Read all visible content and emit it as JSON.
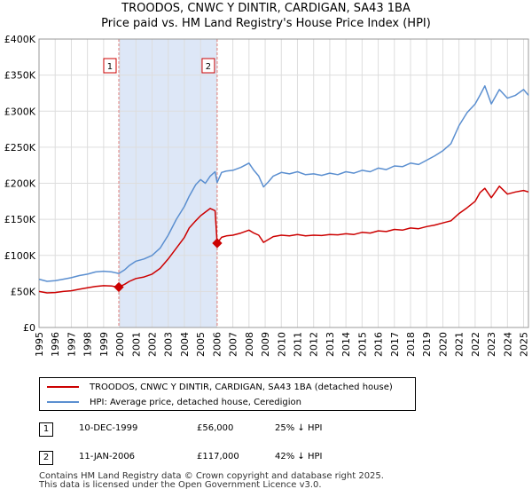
{
  "title_line1": "TROODOS, CNWC Y DINTIR, CARDIGAN, SA43 1BA",
  "title_line2": "Price paid vs. HM Land Registry's House Price Index (HPI)",
  "chart_data": {
    "type": "line",
    "xlim": [
      1995,
      2025.3
    ],
    "ylim": [
      0,
      400000
    ],
    "yticks": [
      0,
      50000,
      100000,
      150000,
      200000,
      250000,
      300000,
      350000,
      400000
    ],
    "ytick_labels": [
      "£0",
      "£50K",
      "£100K",
      "£150K",
      "£200K",
      "£250K",
      "£300K",
      "£350K",
      "£400K"
    ],
    "xticks": [
      1995,
      1996,
      1997,
      1998,
      1999,
      2000,
      2001,
      2002,
      2003,
      2004,
      2005,
      2006,
      2007,
      2008,
      2009,
      2010,
      2011,
      2012,
      2013,
      2014,
      2015,
      2016,
      2017,
      2018,
      2019,
      2020,
      2021,
      2022,
      2023,
      2024,
      2025
    ],
    "grid": true,
    "shaded_span": [
      1999.94,
      2006.03
    ],
    "series": [
      {
        "name": "TROODOS, CNWC Y DINTIR, CARDIGAN, SA43 1BA (detached house)",
        "color": "#cc0000",
        "x": [
          1995,
          1995.5,
          1996,
          1996.5,
          1997,
          1997.5,
          1998,
          1998.5,
          1999,
          1999.5,
          1999.94,
          2000.3,
          2000.6,
          2001,
          2001.5,
          2002,
          2002.5,
          2003,
          2003.5,
          2004,
          2004.3,
          2004.7,
          2005,
          2005.3,
          2005.6,
          2005.9,
          2006.03,
          2006.3,
          2006.6,
          2007,
          2007.5,
          2008,
          2008.3,
          2008.6,
          2008.9,
          2009.2,
          2009.5,
          2010,
          2010.5,
          2011,
          2011.5,
          2012,
          2012.5,
          2013,
          2013.5,
          2014,
          2014.5,
          2015,
          2015.5,
          2016,
          2016.5,
          2017,
          2017.5,
          2018,
          2018.5,
          2019,
          2019.5,
          2020,
          2020.5,
          2021,
          2021.5,
          2022,
          2022.3,
          2022.6,
          2023,
          2023.5,
          2024,
          2024.5,
          2025,
          2025.3
        ],
        "values": [
          50000,
          48000,
          48500,
          50000,
          51000,
          53000,
          55000,
          57000,
          58000,
          57500,
          56000,
          60000,
          64000,
          68000,
          70000,
          74000,
          82000,
          95000,
          110000,
          125000,
          138000,
          148000,
          155000,
          160000,
          165000,
          162000,
          117000,
          125000,
          127000,
          128000,
          131000,
          135000,
          131000,
          128000,
          118000,
          122000,
          126000,
          128000,
          127000,
          129000,
          127000,
          128000,
          127500,
          129000,
          128500,
          130000,
          129000,
          132000,
          131000,
          134000,
          133000,
          136000,
          135000,
          138000,
          137000,
          140000,
          142000,
          145000,
          148000,
          158000,
          166000,
          175000,
          187000,
          193000,
          180000,
          196000,
          185000,
          188000,
          190000,
          188000
        ]
      },
      {
        "name": "HPI: Average price, detached house, Ceredigion",
        "color": "#5b8fd0",
        "x": [
          1995,
          1995.5,
          1996,
          1996.5,
          1997,
          1997.5,
          1998,
          1998.5,
          1999,
          1999.5,
          1999.94,
          2000.3,
          2000.6,
          2001,
          2001.5,
          2002,
          2002.5,
          2003,
          2003.5,
          2004,
          2004.3,
          2004.7,
          2005,
          2005.3,
          2005.6,
          2005.9,
          2006.03,
          2006.3,
          2006.6,
          2007,
          2007.5,
          2008,
          2008.3,
          2008.6,
          2008.9,
          2009.2,
          2009.5,
          2010,
          2010.5,
          2011,
          2011.5,
          2012,
          2012.5,
          2013,
          2013.5,
          2014,
          2014.5,
          2015,
          2015.5,
          2016,
          2016.5,
          2017,
          2017.5,
          2018,
          2018.5,
          2019,
          2019.5,
          2020,
          2020.5,
          2021,
          2021.5,
          2022,
          2022.3,
          2022.6,
          2023,
          2023.5,
          2024,
          2024.5,
          2025,
          2025.3
        ],
        "values": [
          67000,
          64000,
          65000,
          67000,
          69000,
          72000,
          74000,
          77000,
          78000,
          77000,
          75000,
          80000,
          86000,
          92000,
          95000,
          100000,
          110000,
          128000,
          150000,
          168000,
          182000,
          198000,
          205000,
          200000,
          210000,
          216000,
          201000,
          215000,
          217000,
          218000,
          222000,
          228000,
          218000,
          210000,
          195000,
          202000,
          210000,
          215000,
          213000,
          216000,
          212000,
          213000,
          211000,
          214000,
          212000,
          216000,
          214000,
          218000,
          216000,
          221000,
          219000,
          224000,
          223000,
          228000,
          226000,
          232000,
          238000,
          245000,
          255000,
          280000,
          298000,
          310000,
          322000,
          335000,
          310000,
          330000,
          318000,
          322000,
          330000,
          322000
        ]
      }
    ],
    "sales": [
      {
        "label": "1",
        "x": 1999.94,
        "value": 56000
      },
      {
        "label": "2",
        "x": 2006.03,
        "value": 117000
      }
    ]
  },
  "legend": {
    "red_label": "TROODOS, CNWC Y DINTIR, CARDIGAN, SA43 1BA (detached house)",
    "blue_label": "HPI: Average price, detached house, Ceredigion"
  },
  "transactions": [
    {
      "num": "1",
      "date": "10-DEC-1999",
      "price": "£56,000",
      "hpi": "25% ↓ HPI"
    },
    {
      "num": "2",
      "date": "11-JAN-2006",
      "price": "£117,000",
      "hpi": "42% ↓ HPI"
    }
  ],
  "footer_line1": "Contains HM Land Registry data © Crown copyright and database right 2025.",
  "footer_line2": "This data is licensed under the Open Government Licence v3.0."
}
